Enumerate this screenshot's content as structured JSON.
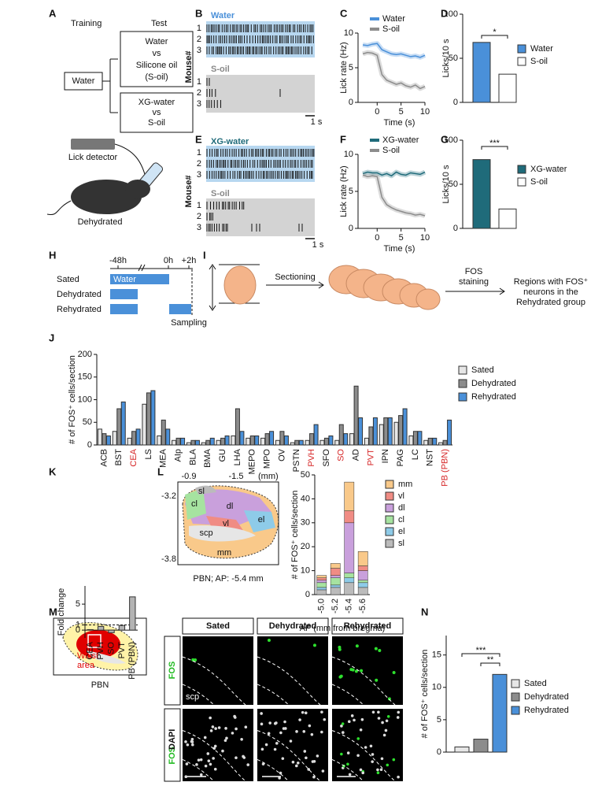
{
  "panel_labels": [
    "A",
    "B",
    "C",
    "D",
    "E",
    "F",
    "G",
    "H",
    "I",
    "J",
    "K",
    "L",
    "M",
    "N"
  ],
  "panel_A": {
    "training": "Training",
    "test": "Test",
    "water": "Water",
    "test_1": [
      "Water",
      "vs",
      "Silicone oil",
      "(S-oil)"
    ],
    "test_2": [
      "XG-water",
      "vs",
      "S-oil"
    ],
    "detector": "Lick detector",
    "mouse": "Dehydrated"
  },
  "panel_B": {
    "top": "Water",
    "bottom": "S-oil",
    "ylabel": "Mouse#",
    "rows": [
      "1",
      "2",
      "3"
    ],
    "scale": "1 s"
  },
  "panel_E": {
    "top": "XG-water",
    "bottom": "S-oil",
    "ylabel": "Mouse#",
    "rows": [
      "1",
      "2",
      "3"
    ],
    "scale": "1 s"
  },
  "panel_H": {
    "times": [
      "-48h",
      "0h",
      "+2h"
    ],
    "groups": [
      "Sated",
      "Dehydrated",
      "Rehydrated"
    ],
    "bar": "Water",
    "sampling": "Sampling"
  },
  "panel_I": {
    "step1": "Sectioning",
    "step2": [
      "FOS",
      "staining"
    ],
    "result": [
      "Regions with FOS⁺",
      "neurons in the",
      "Rehydrated group"
    ]
  },
  "panel_L_map": {
    "x_ticks": [
      "-0.9",
      "-1.5"
    ],
    "x_unit": "(mm)",
    "y_ticks": [
      "-3.2",
      "-3.8"
    ],
    "regions": [
      "sl",
      "cl",
      "dl",
      "vl",
      "el",
      "scp",
      "mm"
    ],
    "caption": "PBN; AP: -5.4 mm"
  },
  "panel_M": {
    "area": [
      "Waist",
      "area"
    ],
    "caption": "PBN",
    "columns": [
      "Sated",
      "Dehydrated",
      "Rehydrated"
    ],
    "rows": [
      "FOS",
      "DAPI"
    ],
    "scp": "scp"
  },
  "chart_data": [
    {
      "type": "line",
      "xlabel": "Time (s)",
      "ylabel": "Lick rate (Hz)",
      "x": [
        -3,
        -2,
        -1,
        0,
        1,
        2,
        3,
        4,
        5,
        6,
        7,
        8,
        9,
        10
      ],
      "xlim": [
        -4,
        10
      ],
      "xticks": [
        0,
        5,
        10
      ],
      "ylim": [
        0,
        10
      ],
      "yticks": [
        0,
        5,
        10
      ],
      "series": [
        {
          "name": "Water",
          "color": "#4a90d9",
          "values": [
            8.3,
            8.2,
            8.4,
            8.5,
            7.6,
            7.3,
            7.0,
            6.9,
            7.0,
            6.8,
            6.6,
            6.7,
            6.5,
            6.8
          ]
        },
        {
          "name": "S-oil",
          "color": "#8c8c8c",
          "values": [
            7.0,
            7.2,
            7.1,
            6.8,
            4.0,
            3.2,
            2.9,
            2.6,
            2.8,
            2.4,
            2.2,
            2.5,
            2.0,
            2.3
          ]
        }
      ]
    },
    {
      "type": "bar",
      "ylabel": "Licks/10 s",
      "ylim": [
        0,
        100
      ],
      "yticks": [
        0,
        50,
        100
      ],
      "annotations": [
        "*"
      ],
      "series": [
        {
          "name": "Water",
          "color": "#4a90d9",
          "values": [
            68
          ]
        },
        {
          "name": "S-oil",
          "color": "#ffffff",
          "values": [
            32
          ]
        }
      ]
    },
    {
      "type": "line",
      "xlabel": "Time (s)",
      "ylabel": "Lick rate (Hz)",
      "x": [
        -3,
        -2,
        -1,
        0,
        1,
        2,
        3,
        4,
        5,
        6,
        7,
        8,
        9,
        10
      ],
      "xlim": [
        -4,
        10
      ],
      "xticks": [
        0,
        5,
        10
      ],
      "ylim": [
        0,
        10
      ],
      "yticks": [
        0,
        5,
        10
      ],
      "series": [
        {
          "name": "XG-water",
          "color": "#1f6b7a",
          "values": [
            7.4,
            7.6,
            7.5,
            7.5,
            7.2,
            7.4,
            7.1,
            7.6,
            7.3,
            7.2,
            7.5,
            7.4,
            7.3,
            7.6
          ]
        },
        {
          "name": "S-oil",
          "color": "#8c8c8c",
          "values": [
            7.2,
            7.0,
            7.1,
            7.0,
            4.2,
            3.2,
            2.8,
            2.5,
            2.3,
            2.1,
            2.0,
            1.8,
            1.9,
            1.7
          ]
        }
      ]
    },
    {
      "type": "bar",
      "ylabel": "Licks/10 s",
      "ylim": [
        0,
        100
      ],
      "yticks": [
        0,
        50,
        100
      ],
      "annotations": [
        "***"
      ],
      "series": [
        {
          "name": "XG-water",
          "color": "#1f6b7a",
          "values": [
            78
          ]
        },
        {
          "name": "S-oil",
          "color": "#ffffff",
          "values": [
            22
          ]
        }
      ]
    },
    {
      "type": "bar",
      "ylabel": "# of FOS⁺ cells/section",
      "ylim": [
        0,
        200
      ],
      "yticks": [
        0,
        50,
        100,
        150,
        200
      ],
      "categories": [
        "ACB",
        "BST",
        "CEA",
        "LS",
        "MEA",
        "AIp",
        "BLA",
        "BMA",
        "GU",
        "LHA",
        "MEPO",
        "MPO",
        "OV",
        "PSTN",
        "PVH",
        "SFO",
        "SO",
        "AD",
        "PVT",
        "IPN",
        "PAG",
        "LC",
        "NST",
        "PB (PBN)"
      ],
      "category_label_colors": [
        "#111",
        "#111",
        "#d62728",
        "#111",
        "#111",
        "#111",
        "#111",
        "#111",
        "#111",
        "#111",
        "#111",
        "#111",
        "#111",
        "#111",
        "#d62728",
        "#111",
        "#d62728",
        "#111",
        "#d62728",
        "#111",
        "#111",
        "#111",
        "#111",
        "#d62728"
      ],
      "series": [
        {
          "name": "Sated",
          "color": "#e6e6e6",
          "values": [
            35,
            30,
            15,
            90,
            20,
            10,
            5,
            5,
            10,
            20,
            15,
            15,
            10,
            5,
            10,
            10,
            10,
            25,
            15,
            45,
            50,
            20,
            10,
            5
          ]
        },
        {
          "name": "Dehydrated",
          "color": "#8c8c8c",
          "values": [
            25,
            80,
            30,
            115,
            55,
            15,
            10,
            10,
            15,
            80,
            20,
            25,
            30,
            10,
            25,
            15,
            45,
            130,
            40,
            60,
            65,
            30,
            15,
            10
          ]
        },
        {
          "name": "Rehydrated",
          "color": "#4a90d9",
          "values": [
            20,
            95,
            35,
            120,
            35,
            15,
            10,
            15,
            20,
            30,
            20,
            30,
            20,
            10,
            45,
            20,
            25,
            60,
            60,
            60,
            80,
            30,
            15,
            55
          ]
        }
      ]
    },
    {
      "type": "bar",
      "ylabel": "Fold change",
      "ylim": [
        -1.5,
        8.5
      ],
      "yticks": [
        0,
        1,
        5
      ],
      "reference_line": 1,
      "color": "#b3b3b3",
      "categories": [
        "CEA",
        "PVH",
        "SO",
        "PVT",
        "PB (PBN)"
      ],
      "values": [
        0.1,
        0.7,
        -0.5,
        0.9,
        6.4
      ]
    },
    {
      "type": "stacked_bar",
      "ylabel": "# of FOS⁺ cells/section",
      "xlabel": "AP (mm from bregma)",
      "ylim": [
        0,
        50
      ],
      "yticks": [
        0,
        10,
        20,
        30,
        40,
        50
      ],
      "categories": [
        "-5.0",
        "-5.2",
        "-5.4",
        "-5.6"
      ],
      "series": [
        {
          "name": "mm",
          "color": "#f9c98a",
          "values": [
            1,
            2,
            12,
            6
          ]
        },
        {
          "name": "vl",
          "color": "#f08c84",
          "values": [
            1,
            3,
            5,
            2
          ]
        },
        {
          "name": "dl",
          "color": "#c9a0dc",
          "values": [
            1,
            1,
            21,
            4
          ]
        },
        {
          "name": "cl",
          "color": "#a6e3a0",
          "values": [
            2,
            3,
            2,
            1
          ]
        },
        {
          "name": "el",
          "color": "#8ecbe8",
          "values": [
            1,
            1,
            2,
            2
          ]
        },
        {
          "name": "sl",
          "color": "#bbbbbb",
          "values": [
            2,
            3,
            5,
            3
          ]
        }
      ]
    },
    {
      "type": "bar",
      "ylabel": "# of FOS⁺ cells/section",
      "ylim": [
        0,
        18
      ],
      "yticks": [
        0,
        5,
        10,
        15
      ],
      "annotations": [
        "***",
        "**"
      ],
      "series": [
        {
          "name": "Sated",
          "color": "#e6e6e6",
          "values": [
            0.8
          ]
        },
        {
          "name": "Dehydrated",
          "color": "#8c8c8c",
          "values": [
            2
          ]
        },
        {
          "name": "Rehydrated",
          "color": "#4a90d9",
          "values": [
            12
          ]
        }
      ]
    }
  ]
}
